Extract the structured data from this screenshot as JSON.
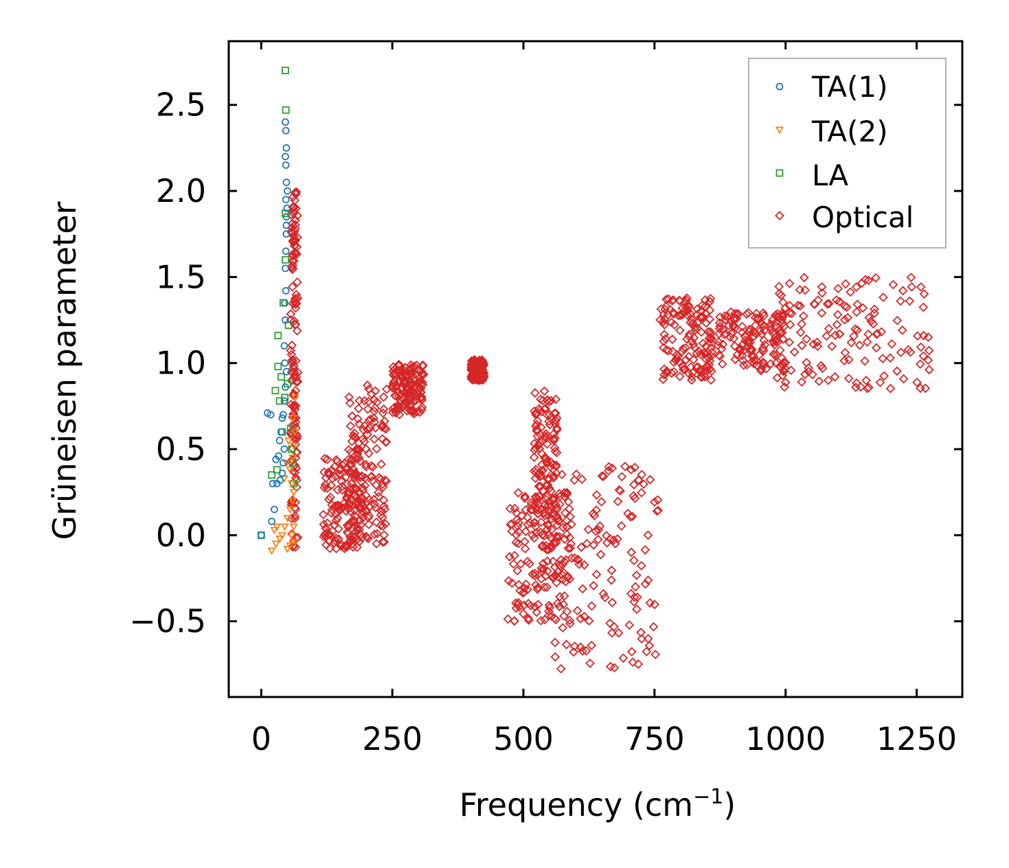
{
  "chart_data": {
    "type": "scatter",
    "xlabel": "Frequency (cm",
    "xlabel_sup": "−1",
    "xlabel_end": ")",
    "ylabel": "Grüneisen parameter",
    "xlim": [
      -62,
      1337
    ],
    "ylim": [
      -0.94,
      2.87
    ],
    "xticks": [
      {
        "value": 0,
        "label": "0"
      },
      {
        "value": 250,
        "label": "250"
      },
      {
        "value": 500,
        "label": "500"
      },
      {
        "value": 750,
        "label": "750"
      },
      {
        "value": 1000,
        "label": "1000"
      },
      {
        "value": 1250,
        "label": "1250"
      }
    ],
    "yticks": [
      {
        "value": -0.5,
        "label": "−0.5"
      },
      {
        "value": 0.0,
        "label": "0.0"
      },
      {
        "value": 0.5,
        "label": "0.5"
      },
      {
        "value": 1.0,
        "label": "1.0"
      },
      {
        "value": 1.5,
        "label": "1.5"
      },
      {
        "value": 2.0,
        "label": "2.0"
      },
      {
        "value": 2.5,
        "label": "2.5"
      }
    ],
    "legend_position": "top-right",
    "series": [
      {
        "name": "TA(1)",
        "marker": "circle",
        "color": "#1f77b4",
        "points": [
          [
            0,
            0.0
          ],
          [
            20,
            0.08
          ],
          [
            25,
            0.15
          ],
          [
            22,
            0.3
          ],
          [
            30,
            0.3
          ],
          [
            12,
            0.71
          ],
          [
            18,
            0.7
          ],
          [
            28,
            0.44
          ],
          [
            33,
            0.46
          ],
          [
            35,
            0.55
          ],
          [
            38,
            0.6
          ],
          [
            40,
            0.68
          ],
          [
            42,
            0.7
          ],
          [
            44,
            0.78
          ],
          [
            46,
            0.86
          ],
          [
            48,
            0.95
          ],
          [
            45,
            1.0
          ],
          [
            44,
            1.1
          ],
          [
            46,
            1.25
          ],
          [
            45,
            1.35
          ],
          [
            47,
            1.42
          ],
          [
            46,
            1.55
          ],
          [
            47,
            1.65
          ],
          [
            48,
            1.75
          ],
          [
            48,
            1.85
          ],
          [
            47,
            1.95
          ],
          [
            48,
            2.05
          ],
          [
            47,
            2.15
          ],
          [
            48,
            2.25
          ],
          [
            47,
            2.35
          ],
          [
            46,
            2.4
          ],
          [
            49,
            1.9
          ],
          [
            48,
            1.8
          ],
          [
            50,
            2.0
          ],
          [
            46,
            2.2
          ],
          [
            44,
            0.5
          ],
          [
            42,
            0.42
          ],
          [
            40,
            0.36
          ],
          [
            36,
            0.32
          ]
        ]
      },
      {
        "name": "TA(2)",
        "marker": "triangle",
        "color": "#ff7f0e",
        "points": [
          [
            20,
            -0.09
          ],
          [
            28,
            -0.05
          ],
          [
            35,
            -0.02
          ],
          [
            40,
            0.0
          ],
          [
            45,
            0.05
          ],
          [
            50,
            0.1
          ],
          [
            55,
            0.15
          ],
          [
            60,
            0.2
          ],
          [
            62,
            0.25
          ],
          [
            58,
            0.3
          ],
          [
            55,
            0.38
          ],
          [
            60,
            0.45
          ],
          [
            62,
            0.52
          ],
          [
            64,
            0.6
          ],
          [
            60,
            0.68
          ],
          [
            65,
            0.8
          ],
          [
            55,
            -0.06
          ],
          [
            50,
            -0.08
          ],
          [
            65,
            -0.04
          ],
          [
            58,
            0.0
          ],
          [
            62,
            0.05
          ],
          [
            48,
            0.42
          ],
          [
            44,
            0.33
          ],
          [
            25,
            0.03
          ],
          [
            30,
            0.05
          ],
          [
            52,
            0.55
          ]
        ]
      },
      {
        "name": "LA",
        "marker": "square",
        "color": "#2ca02c",
        "points": [
          [
            0,
            0.0
          ],
          [
            20,
            0.35
          ],
          [
            30,
            0.38
          ],
          [
            32,
            1.16
          ],
          [
            27,
            0.84
          ],
          [
            32,
            0.98
          ],
          [
            38,
            0.92
          ],
          [
            42,
            1.35
          ],
          [
            46,
            1.6
          ],
          [
            46,
            1.87
          ],
          [
            47,
            2.47
          ],
          [
            46,
            2.7
          ],
          [
            50,
            0.88
          ],
          [
            52,
            1.22
          ],
          [
            56,
            0.62
          ],
          [
            58,
            0.5
          ],
          [
            60,
            0.42
          ],
          [
            62,
            0.3
          ],
          [
            45,
            0.8
          ],
          [
            35,
            0.78
          ],
          [
            40,
            0.6
          ]
        ]
      },
      {
        "name": "Optical",
        "marker": "diamond",
        "color": "#d62728",
        "clusters": [
          {
            "x": [
              56,
              70
            ],
            "y": [
              -0.08,
              2.0
            ]
          },
          {
            "x": [
              118,
              195
            ],
            "y": [
              -0.08,
              0.45
            ]
          },
          {
            "x": [
              165,
              240
            ],
            "y": [
              -0.05,
              0.88
            ]
          },
          {
            "x": [
              250,
              310
            ],
            "y": [
              0.7,
              1.0
            ]
          },
          {
            "x": [
              400,
              425
            ],
            "y": [
              0.9,
              1.02
            ]
          },
          {
            "x": [
              470,
              590
            ],
            "y": [
              -0.5,
              0.25
            ]
          },
          {
            "x": [
              520,
              565
            ],
            "y": [
              -0.1,
              0.84
            ]
          },
          {
            "x": [
              560,
              760
            ],
            "y": [
              -0.78,
              0.4
            ]
          },
          {
            "x": [
              760,
              860
            ],
            "y": [
              0.9,
              1.38
            ]
          },
          {
            "x": [
              870,
              1000
            ],
            "y": [
              0.95,
              1.3
            ]
          },
          {
            "x": [
              980,
              1280
            ],
            "y": [
              0.85,
              1.5
            ]
          }
        ]
      }
    ]
  }
}
